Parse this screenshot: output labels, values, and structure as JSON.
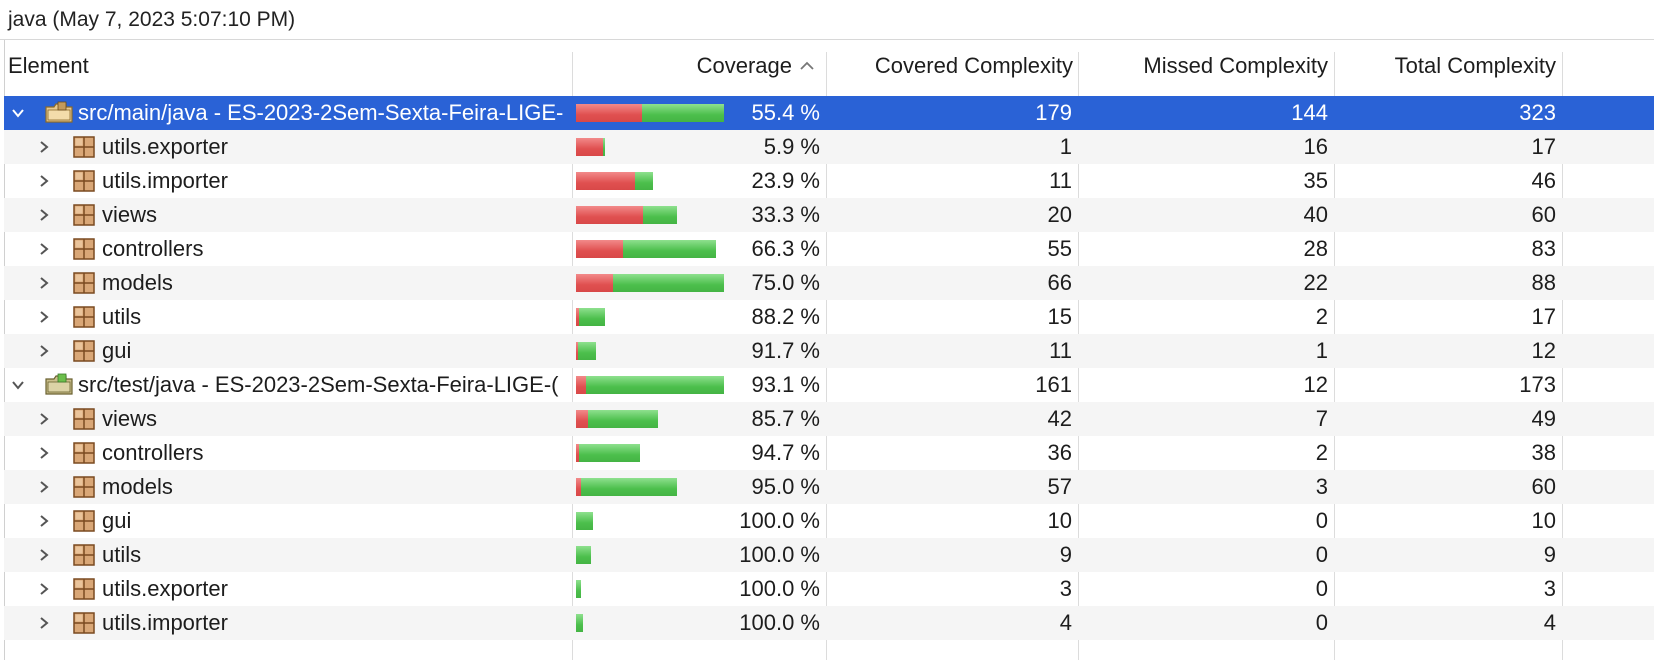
{
  "title": "java (May 7, 2023 5:07:10 PM)",
  "columns": {
    "element": "Element",
    "coverage": "Coverage",
    "covered": "Covered Complexity",
    "missed": "Missed Complexity",
    "total": "Total Complexity",
    "sort_icon": "chevron-up-icon"
  },
  "colors": {
    "selection": "#2a62d6",
    "missed_bar": "#e05050",
    "covered_bar": "#4cbf4c"
  },
  "rows": [
    {
      "level": 0,
      "type": "source-folder",
      "expanded": true,
      "selected": true,
      "name": "src/main/java - ES-2023-2Sem-Sexta-Feira-LIGE-",
      "coverage": "55.4 %",
      "covered": "179",
      "missed": "144",
      "total": "323"
    },
    {
      "level": 1,
      "type": "package",
      "name": "utils.exporter",
      "coverage": "5.9 %",
      "covered": "1",
      "missed": "16",
      "total": "17"
    },
    {
      "level": 1,
      "type": "package",
      "name": "utils.importer",
      "coverage": "23.9 %",
      "covered": "11",
      "missed": "35",
      "total": "46"
    },
    {
      "level": 1,
      "type": "package",
      "name": "views",
      "coverage": "33.3 %",
      "covered": "20",
      "missed": "40",
      "total": "60"
    },
    {
      "level": 1,
      "type": "package",
      "name": "controllers",
      "coverage": "66.3 %",
      "covered": "55",
      "missed": "28",
      "total": "83"
    },
    {
      "level": 1,
      "type": "package",
      "name": "models",
      "coverage": "75.0 %",
      "covered": "66",
      "missed": "22",
      "total": "88"
    },
    {
      "level": 1,
      "type": "package",
      "name": "utils",
      "coverage": "88.2 %",
      "covered": "15",
      "missed": "2",
      "total": "17"
    },
    {
      "level": 1,
      "type": "package",
      "name": "gui",
      "coverage": "91.7 %",
      "covered": "11",
      "missed": "1",
      "total": "12"
    },
    {
      "level": 0,
      "type": "test-folder",
      "expanded": true,
      "name": "src/test/java - ES-2023-2Sem-Sexta-Feira-LIGE-(",
      "coverage": "93.1 %",
      "covered": "161",
      "missed": "12",
      "total": "173"
    },
    {
      "level": 1,
      "type": "package",
      "name": "views",
      "coverage": "85.7 %",
      "covered": "42",
      "missed": "7",
      "total": "49"
    },
    {
      "level": 1,
      "type": "package",
      "name": "controllers",
      "coverage": "94.7 %",
      "covered": "36",
      "missed": "2",
      "total": "38"
    },
    {
      "level": 1,
      "type": "package",
      "name": "models",
      "coverage": "95.0 %",
      "covered": "57",
      "missed": "3",
      "total": "60"
    },
    {
      "level": 1,
      "type": "package",
      "name": "gui",
      "coverage": "100.0 %",
      "covered": "10",
      "missed": "0",
      "total": "10"
    },
    {
      "level": 1,
      "type": "package",
      "name": "utils",
      "coverage": "100.0 %",
      "covered": "9",
      "missed": "0",
      "total": "9"
    },
    {
      "level": 1,
      "type": "package",
      "name": "utils.exporter",
      "coverage": "100.0 %",
      "covered": "3",
      "missed": "0",
      "total": "3"
    },
    {
      "level": 1,
      "type": "package",
      "name": "utils.importer",
      "coverage": "100.0 %",
      "covered": "4",
      "missed": "0",
      "total": "4"
    }
  ]
}
